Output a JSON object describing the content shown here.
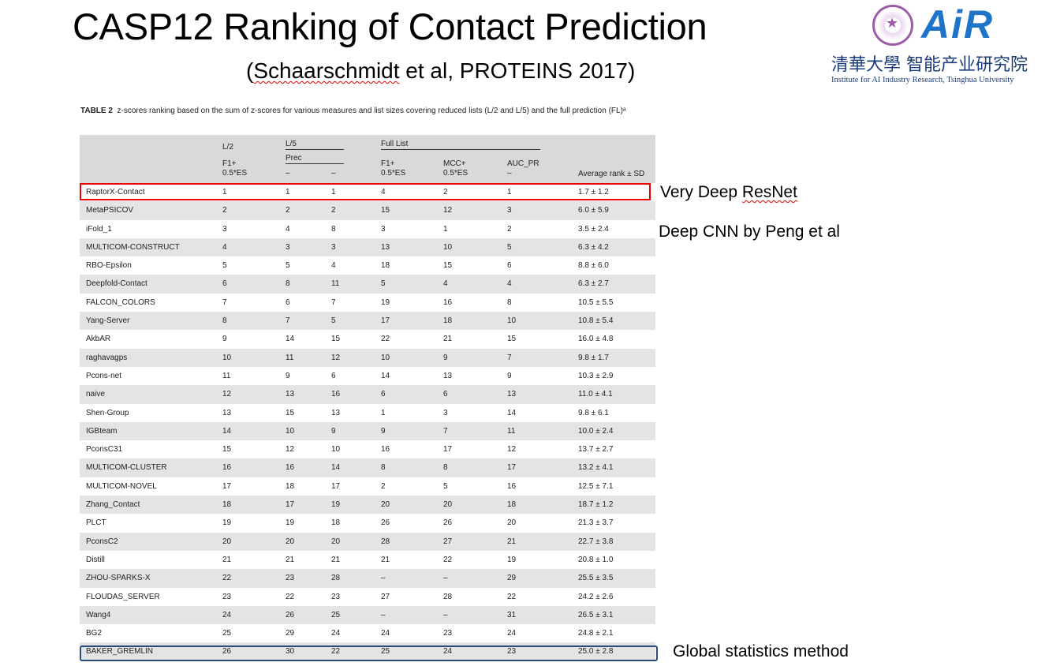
{
  "slide": {
    "title": "CASP12 Ranking of Contact Prediction",
    "subtitle_prefix": "(",
    "subtitle_author": "Schaarschmidt",
    "subtitle_rest": " et al, PROTEINS 2017)"
  },
  "logo": {
    "brand": "AiR",
    "chinese_name": "清華大學 智能产业研究院",
    "english_name": "Institute for AI Industry Research, Tsinghua University"
  },
  "table": {
    "caption_label": "TABLE 2",
    "caption_text": "z-scores ranking based on the sum of z-scores for various measures and list sizes covering reduced lists (L/2 and L/5) and the full prediction (FL)ᵃ",
    "header": {
      "l2": "L/2",
      "l5": "L/5",
      "full_list": "Full List",
      "prec": "Prec",
      "f1_l2": "F1+",
      "es_l2": "0.5*ES",
      "dash1": "–",
      "dash2": "–",
      "f1_full": "F1+",
      "es_full": "0.5*ES",
      "mcc": "MCC+",
      "es_mcc": "0.5*ES",
      "auc": "AUC_PR",
      "dash3": "–",
      "avg": "Average rank ± SD"
    },
    "rows": [
      [
        "RaptorX-Contact",
        "1",
        "1",
        "1",
        "4",
        "2",
        "1",
        "1.7 ± 1.2"
      ],
      [
        "MetaPSICOV",
        "2",
        "2",
        "2",
        "15",
        "12",
        "3",
        "6.0 ± 5.9"
      ],
      [
        "iFold_1",
        "3",
        "4",
        "8",
        "3",
        "1",
        "2",
        "3.5 ± 2.4"
      ],
      [
        "MULTICOM-CONSTRUCT",
        "4",
        "3",
        "3",
        "13",
        "10",
        "5",
        "6.3 ± 4.2"
      ],
      [
        "RBO-Epsilon",
        "5",
        "5",
        "4",
        "18",
        "15",
        "6",
        "8.8 ± 6.0"
      ],
      [
        "Deepfold-Contact",
        "6",
        "8",
        "11",
        "5",
        "4",
        "4",
        "6.3 ± 2.7"
      ],
      [
        "FALCON_COLORS",
        "7",
        "6",
        "7",
        "19",
        "16",
        "8",
        "10.5 ± 5.5"
      ],
      [
        "Yang-Server",
        "8",
        "7",
        "5",
        "17",
        "18",
        "10",
        "10.8 ± 5.4"
      ],
      [
        "AkbAR",
        "9",
        "14",
        "15",
        "22",
        "21",
        "15",
        "16.0 ± 4.8"
      ],
      [
        "raghavagps",
        "10",
        "11",
        "12",
        "10",
        "9",
        "7",
        "9.8 ± 1.7"
      ],
      [
        "Pcons-net",
        "11",
        "9",
        "6",
        "14",
        "13",
        "9",
        "10.3 ± 2.9"
      ],
      [
        "naive",
        "12",
        "13",
        "16",
        "6",
        "6",
        "13",
        "11.0 ± 4.1"
      ],
      [
        "Shen-Group",
        "13",
        "15",
        "13",
        "1",
        "3",
        "14",
        "9.8 ± 6.1"
      ],
      [
        "IGBteam",
        "14",
        "10",
        "9",
        "9",
        "7",
        "11",
        "10.0 ± 2.4"
      ],
      [
        "PconsC31",
        "15",
        "12",
        "10",
        "16",
        "17",
        "12",
        "13.7 ± 2.7"
      ],
      [
        "MULTICOM-CLUSTER",
        "16",
        "16",
        "14",
        "8",
        "8",
        "17",
        "13.2 ± 4.1"
      ],
      [
        "MULTICOM-NOVEL",
        "17",
        "18",
        "17",
        "2",
        "5",
        "16",
        "12.5 ± 7.1"
      ],
      [
        "Zhang_Contact",
        "18",
        "17",
        "19",
        "20",
        "20",
        "18",
        "18.7 ± 1.2"
      ],
      [
        "PLCT",
        "19",
        "19",
        "18",
        "26",
        "26",
        "20",
        "21.3 ± 3.7"
      ],
      [
        "PconsC2",
        "20",
        "20",
        "20",
        "28",
        "27",
        "21",
        "22.7 ± 3.8"
      ],
      [
        "Distill",
        "21",
        "21",
        "21",
        "21",
        "22",
        "19",
        "20.8 ± 1.0"
      ],
      [
        "ZHOU-SPARKS-X",
        "22",
        "23",
        "28",
        "–",
        "–",
        "29",
        "25.5 ± 3.5"
      ],
      [
        "FLOUDAS_SERVER",
        "23",
        "22",
        "23",
        "27",
        "28",
        "22",
        "24.2 ± 2.6"
      ],
      [
        "Wang4",
        "24",
        "26",
        "25",
        "–",
        "–",
        "31",
        "26.5 ± 3.1"
      ],
      [
        "BG2",
        "25",
        "29",
        "24",
        "24",
        "23",
        "24",
        "24.8 ± 2.1"
      ],
      [
        "BAKER_GREMLIN",
        "26",
        "30",
        "22",
        "25",
        "24",
        "23",
        "25.0 ± 2.8"
      ]
    ]
  },
  "annotations": {
    "raptorx_prefix": "Very Deep ",
    "raptorx_word": "ResNet",
    "ifold": "Deep CNN by Peng et al",
    "baker": "Global statistics method"
  },
  "colors": {
    "highlight_red": "#ee0000",
    "highlight_blue": "#2b4a7a",
    "header_bg": "#d9d9d9",
    "stripe_bg": "#e4e4e4",
    "logo_blue": "#1e74c8",
    "seal_purple": "#9b5ba8"
  }
}
